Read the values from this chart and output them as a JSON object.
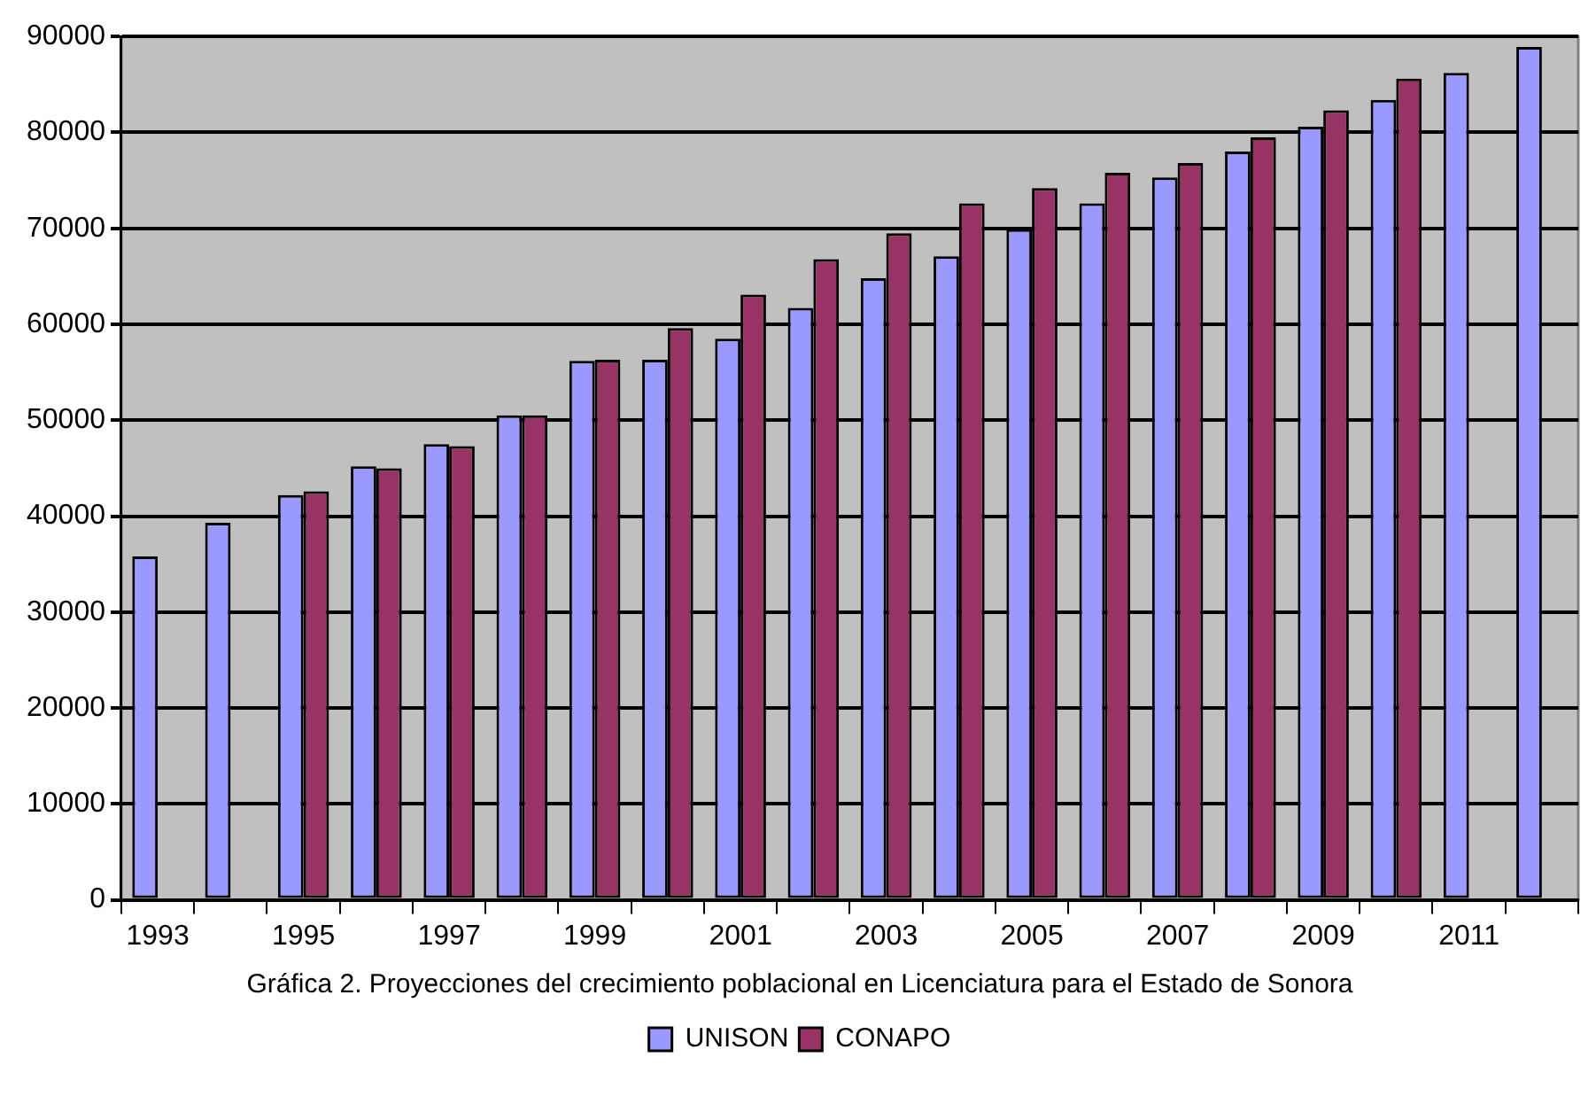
{
  "chart_data": {
    "type": "bar",
    "title": "Gráfica 2. Proyecciones del crecimiento poblacional en Licenciatura para el Estado de Sonora",
    "categories": [
      "1993",
      null,
      "1995",
      null,
      "1997",
      null,
      "1999",
      null,
      "2001",
      null,
      "2003",
      null,
      "2005",
      null,
      "2007",
      null,
      "2009",
      null,
      "2011",
      null
    ],
    "series": [
      {
        "name": "UNISON",
        "color": "#9999ff",
        "values": [
          35800,
          39300,
          42200,
          45200,
          47500,
          50500,
          56200,
          56300,
          58500,
          61700,
          64800,
          67100,
          69900,
          72600,
          75300,
          78000,
          80600,
          83400,
          86200,
          88900
        ]
      },
      {
        "name": "CONAPO",
        "color": "#993366",
        "values": [
          null,
          null,
          42600,
          45000,
          47300,
          50500,
          56300,
          59600,
          63100,
          66800,
          69500,
          72600,
          74200,
          75800,
          76800,
          79500,
          82300,
          85600,
          null,
          null
        ]
      }
    ],
    "ylim": [
      0,
      90000
    ],
    "yticks": [
      0,
      10000,
      20000,
      30000,
      40000,
      50000,
      60000,
      70000,
      80000,
      90000
    ],
    "grid": "y",
    "legend": "bottom"
  }
}
